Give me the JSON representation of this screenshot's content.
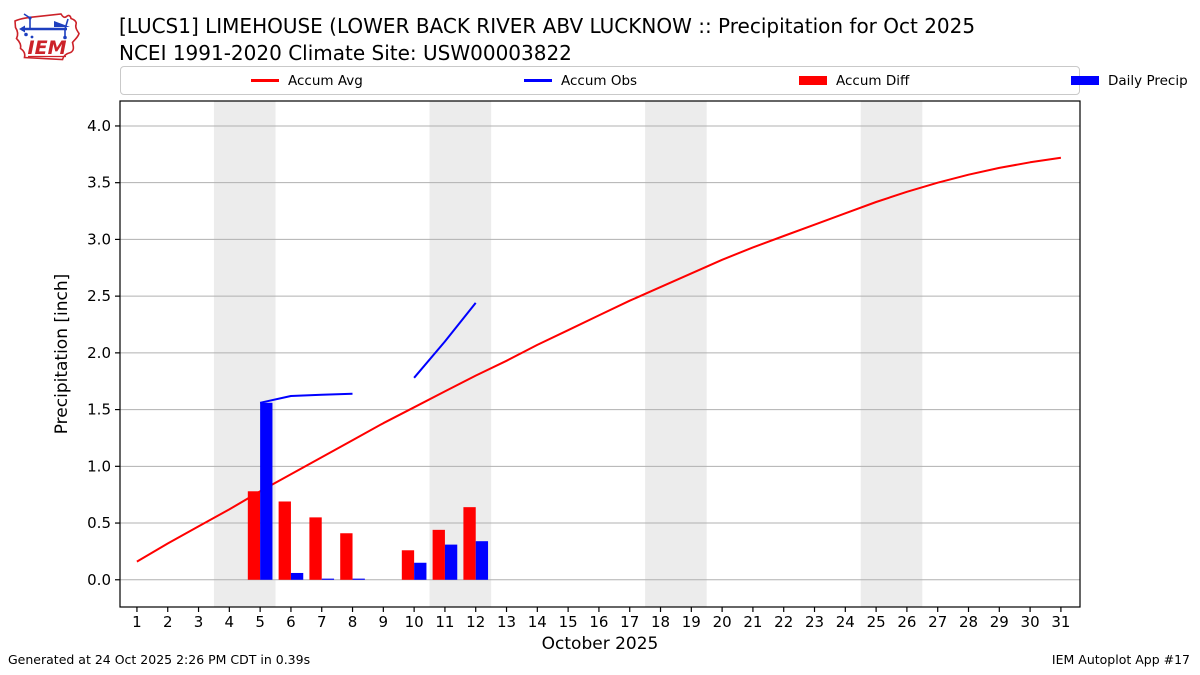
{
  "header": {
    "title_line1": "[LUCS1] LIMEHOUSE (LOWER BACK RIVER ABV LUCKNOW :: Precipitation for Oct 2025",
    "title_line2": "NCEI 1991-2020 Climate Site: USW00003822",
    "logo_text": "IEM"
  },
  "footer": {
    "generated": "Generated at 24 Oct 2025 2:26 PM CDT in 0.39s",
    "app": "IEM Autoplot App #17"
  },
  "chart_data": {
    "type": "line",
    "title": "[LUCS1] LIMEHOUSE (LOWER BACK RIVER ABV LUCKNOW :: Precipitation for Oct 2025",
    "subtitle": "NCEI 1991-2020 Climate Site: USW00003822",
    "xlabel": "October 2025",
    "ylabel": "Precipitation [inch]",
    "x": [
      1,
      2,
      3,
      4,
      5,
      6,
      7,
      8,
      9,
      10,
      11,
      12,
      13,
      14,
      15,
      16,
      17,
      18,
      19,
      20,
      21,
      22,
      23,
      24,
      25,
      26,
      27,
      28,
      29,
      30,
      31
    ],
    "x_ticks": [
      "1",
      "2",
      "3",
      "4",
      "5",
      "6",
      "7",
      "8",
      "9",
      "10",
      "11",
      "12",
      "13",
      "14",
      "15",
      "16",
      "17",
      "18",
      "19",
      "20",
      "21",
      "22",
      "23",
      "24",
      "25",
      "26",
      "27",
      "28",
      "29",
      "30",
      "31"
    ],
    "y_ticks": [
      "0.0",
      "0.5",
      "1.0",
      "1.5",
      "2.0",
      "2.5",
      "3.0",
      "3.5",
      "4.0"
    ],
    "xlim": [
      0.45,
      31.62
    ],
    "ylim": [
      -0.24,
      4.22
    ],
    "grid": true,
    "legend_position": "top",
    "weekend_bands": [
      [
        3.5,
        5.5
      ],
      [
        10.5,
        12.5
      ],
      [
        17.5,
        19.5
      ],
      [
        24.5,
        26.5
      ]
    ],
    "colors": {
      "accum_avg": "#ff0000",
      "accum_obs": "#0000ff",
      "accum_diff": "#ff0000",
      "daily_precip": "#0000ff",
      "band": "#ececec",
      "grid": "#b0b0b0",
      "spine": "#000000"
    },
    "series": [
      {
        "name": "Accum Avg",
        "kind": "line",
        "color": "#ff0000",
        "z": 1,
        "values": [
          0.16,
          0.32,
          0.47,
          0.62,
          0.78,
          0.93,
          1.08,
          1.23,
          1.38,
          1.52,
          1.66,
          1.8,
          1.93,
          2.07,
          2.2,
          2.33,
          2.46,
          2.58,
          2.7,
          2.82,
          2.93,
          3.03,
          3.13,
          3.23,
          3.33,
          3.42,
          3.5,
          3.57,
          3.63,
          3.68,
          3.72
        ]
      },
      {
        "name": "Accum Obs",
        "kind": "line",
        "color": "#0000ff",
        "z": 3,
        "values": [
          null,
          null,
          null,
          null,
          1.56,
          1.62,
          1.63,
          1.64,
          null,
          1.78,
          2.1,
          2.44,
          null,
          null,
          null,
          null,
          null,
          null,
          null,
          null,
          null,
          null,
          null,
          null,
          null,
          null,
          null,
          null,
          null,
          null,
          null
        ]
      },
      {
        "name": "Accum Diff",
        "kind": "bar",
        "color": "#ff0000",
        "offset": -0.2,
        "width": 0.4,
        "z": 2,
        "values": [
          null,
          null,
          null,
          null,
          0.78,
          0.69,
          0.55,
          0.41,
          null,
          0.26,
          0.44,
          0.64,
          null,
          null,
          null,
          null,
          null,
          null,
          null,
          null,
          null,
          null,
          null,
          null,
          null,
          null,
          null,
          null,
          null,
          null,
          null
        ]
      },
      {
        "name": "Daily Precip",
        "kind": "bar",
        "color": "#0000ff",
        "offset": 0.2,
        "width": 0.4,
        "z": 2,
        "values": [
          null,
          null,
          null,
          null,
          1.56,
          0.06,
          0.01,
          0.01,
          null,
          0.15,
          0.31,
          0.34,
          null,
          null,
          null,
          null,
          null,
          null,
          null,
          null,
          null,
          null,
          null,
          null,
          null,
          null,
          null,
          null,
          null,
          null,
          null
        ]
      }
    ]
  }
}
